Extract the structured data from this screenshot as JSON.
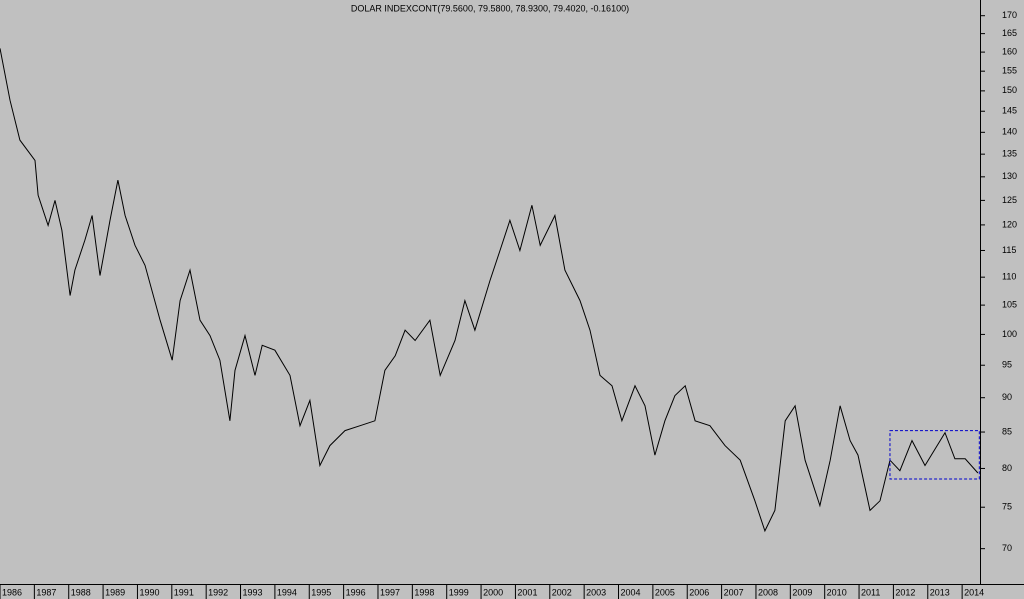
{
  "chart_data": {
    "type": "line",
    "title": "DOLAR INDEXCONT(79.5600, 79.5800, 78.9300, 79.4020, -0.16100)",
    "x": [
      1986.0,
      1986.29,
      1986.58,
      1987.02,
      1987.11,
      1987.4,
      1987.6,
      1987.8,
      1988.04,
      1988.18,
      1988.47,
      1988.68,
      1988.91,
      1989.2,
      1989.43,
      1989.64,
      1989.93,
      1990.22,
      1990.66,
      1991.01,
      1991.24,
      1991.53,
      1991.82,
      1992.11,
      1992.4,
      1992.69,
      1992.84,
      1993.13,
      1993.42,
      1993.63,
      1994.0,
      1994.44,
      1994.73,
      1995.02,
      1995.31,
      1995.6,
      1996.04,
      1996.48,
      1996.91,
      1997.2,
      1997.5,
      1997.79,
      1998.08,
      1998.51,
      1998.81,
      1999.24,
      1999.53,
      1999.82,
      2000.26,
      2000.55,
      2000.84,
      2001.13,
      2001.48,
      2001.72,
      2002.15,
      2002.44,
      2002.88,
      2003.17,
      2003.46,
      2003.81,
      2004.1,
      2004.48,
      2004.77,
      2005.06,
      2005.35,
      2005.64,
      2005.94,
      2006.23,
      2006.66,
      2007.1,
      2007.54,
      2007.97,
      2008.26,
      2008.55,
      2008.85,
      2009.14,
      2009.43,
      2009.86,
      2010.16,
      2010.45,
      2010.74,
      2010.97,
      2011.32,
      2011.61,
      2011.9,
      2012.19,
      2012.54,
      2012.92,
      2013.5,
      2013.79,
      2014.09,
      2014.46
    ],
    "values": [
      161.0,
      147.7,
      138.2,
      133.6,
      126.1,
      119.9,
      125.0,
      118.9,
      106.7,
      111.3,
      117.0,
      121.9,
      110.3,
      120.9,
      129.3,
      121.9,
      116.0,
      112.2,
      102.4,
      95.8,
      105.8,
      111.3,
      102.4,
      99.8,
      95.8,
      86.6,
      94.2,
      99.8,
      93.4,
      98.2,
      97.4,
      93.4,
      85.9,
      89.6,
      80.4,
      83.1,
      85.2,
      85.9,
      86.6,
      94.2,
      96.5,
      100.7,
      99.0,
      102.4,
      93.4,
      99.0,
      105.8,
      100.7,
      109.4,
      115.0,
      120.9,
      115.0,
      124.0,
      116.0,
      121.9,
      111.3,
      105.8,
      100.7,
      93.4,
      91.8,
      86.6,
      91.8,
      88.8,
      81.8,
      86.6,
      90.3,
      91.8,
      86.6,
      85.9,
      83.1,
      81.1,
      75.8,
      72.1,
      74.6,
      86.6,
      88.8,
      81.1,
      75.2,
      81.1,
      88.8,
      83.8,
      81.8,
      74.6,
      75.8,
      81.1,
      79.7,
      83.8,
      80.4,
      84.9,
      81.3,
      81.3,
      79.4
    ],
    "color": "#000000",
    "xlim": [
      1986,
      2014.52
    ],
    "xticks": [
      1986,
      1987,
      1988,
      1989,
      1990,
      1991,
      1992,
      1993,
      1994,
      1995,
      1996,
      1997,
      1998,
      1999,
      2000,
      2001,
      2002,
      2003,
      2004,
      2005,
      2006,
      2007,
      2008,
      2009,
      2010,
      2011,
      2012,
      2013,
      2014
    ],
    "ylim": [
      66,
      174.5
    ],
    "yticks": [
      70,
      75,
      80,
      85,
      90,
      95,
      100,
      105,
      110,
      115,
      120,
      125,
      130,
      135,
      140,
      145,
      150,
      155,
      160,
      165,
      170
    ],
    "log_scale": true,
    "highlight": {
      "x": [
        2011.9,
        2014.5
      ],
      "y": [
        78.6,
        85.2
      ],
      "color": "#0000cc"
    }
  }
}
